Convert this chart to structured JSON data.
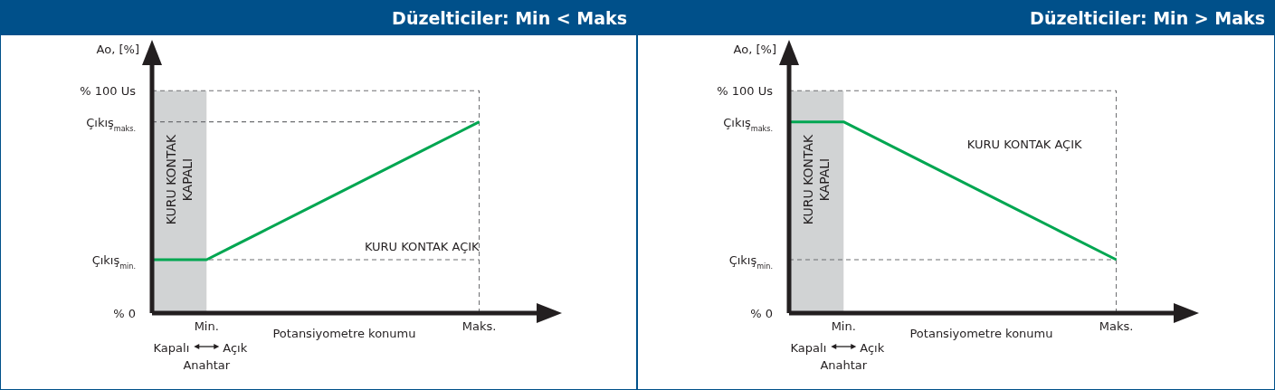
{
  "chart_data": [
    {
      "type": "line",
      "title": "Düzelticiler: Min < Maks",
      "xlabel": "Potansiyometre konumu",
      "ylabel": "Ao, [%]",
      "categories": [
        null,
        "Min.",
        null,
        null,
        null,
        null,
        "Maks."
      ],
      "series": [
        {
          "type": "area",
          "name": "KURU KONTAK KAPALI",
          "color": "#d1d3d4",
          "values": [
            100,
            100,
            null,
            null,
            null,
            null,
            null
          ]
        },
        {
          "color": "#00a651",
          "values": [
            24,
            24,
            36.4,
            48.8,
            61.2,
            73.6,
            86
          ]
        }
      ],
      "ylim": [
        0,
        118
      ],
      "yticks": [
        {
          "value": 0,
          "label": "% 0"
        },
        {
          "value": 24,
          "label": "Çıkış$_{min.}$"
        },
        {
          "value": 86,
          "label": "Çıkış$_{maks.}$"
        },
        {
          "value": 100,
          "label": "% 100 Us"
        }
      ],
      "ref_lines": [
        {
          "axis": "y",
          "value": 100,
          "color": "#6d6e71",
          "line_style": "dashed"
        },
        {
          "axis": "y",
          "value": 86,
          "color": "#6d6e71",
          "line_style": "dashed"
        },
        {
          "axis": "y",
          "value": 24,
          "color": "#6d6e71",
          "line_style": "dashed"
        },
        {
          "axis": "x",
          "value": "Maks.",
          "color": "#6d6e71",
          "line_style": "dashed"
        }
      ],
      "annotations": [
        "KURU KONTAK AÇIK",
        "Kapalı",
        "Açık",
        "Anahtar"
      ]
    },
    {
      "type": "line",
      "title": "Düzelticiler: Min > Maks",
      "xlabel": "Potansiyometre konumu",
      "ylabel": "Ao, [%]",
      "categories": [
        null,
        "Min.",
        null,
        null,
        null,
        null,
        "Maks."
      ],
      "series": [
        {
          "type": "area",
          "name": "KURU KONTAK KAPALI",
          "color": "#d1d3d4",
          "values": [
            100,
            100,
            null,
            null,
            null,
            null,
            null
          ]
        },
        {
          "color": "#00a651",
          "values": [
            86,
            86,
            73.6,
            61.2,
            48.8,
            36.4,
            24
          ]
        }
      ],
      "ylim": [
        0,
        118
      ],
      "yticks": [
        {
          "value": 0,
          "label": "% 0"
        },
        {
          "value": 24,
          "label": "Çıkış$_{min.}$"
        },
        {
          "value": 86,
          "label": "Çıkış$_{maks.}$"
        },
        {
          "value": 100,
          "label": "% 100 Us"
        }
      ],
      "ref_lines": [
        {
          "axis": "y",
          "value": 100,
          "color": "#6d6e71",
          "line_style": "dashed"
        },
        {
          "axis": "y",
          "value": 24,
          "color": "#6d6e71",
          "line_style": "dashed"
        },
        {
          "axis": "x",
          "value": "Maks.",
          "color": "#6d6e71",
          "line_style": "dashed"
        }
      ],
      "annotations": [
        "KURU KONTAK AÇIK",
        "Kapalı",
        "Açık",
        "Anahtar"
      ]
    }
  ]
}
